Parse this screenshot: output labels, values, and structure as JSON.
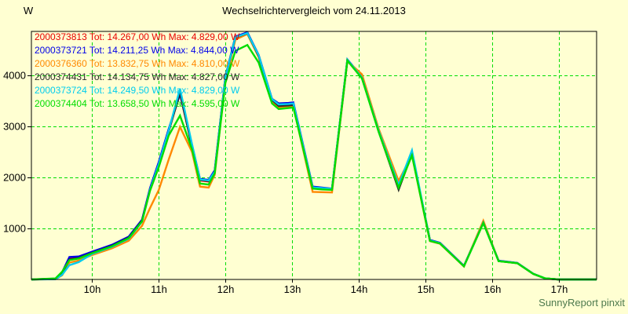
{
  "window": {
    "title": "Wechselrichtervergleich vom 24.11.2013"
  },
  "watermark": "SunnyReport pinxit",
  "colors": {
    "background": "#FFFFD2",
    "axis": "#000000",
    "grid": "#00DD00",
    "watermark": "#4E7A4E"
  },
  "chart_data": {
    "type": "line",
    "title": "Wechselrichtervergleich vom 24.11.2013",
    "ylabel": "W",
    "xlabel": "",
    "x_unit": "hour_of_day",
    "xlim": [
      9.09,
      17.57
    ],
    "ylim": [
      0,
      4861
    ],
    "grid": {
      "show": true,
      "color": "#00DD00",
      "style": "dashed"
    },
    "legend_position": "top-left-inside",
    "xticks": [
      {
        "value": 10,
        "label": "10h"
      },
      {
        "value": 11,
        "label": "11h"
      },
      {
        "value": 12,
        "label": "12h"
      },
      {
        "value": 13,
        "label": "13h"
      },
      {
        "value": 14,
        "label": "14h"
      },
      {
        "value": 15,
        "label": "15h"
      },
      {
        "value": 16,
        "label": "16h"
      },
      {
        "value": 17,
        "label": "17h"
      }
    ],
    "yticks": [
      {
        "value": 1000,
        "label": "1000"
      },
      {
        "value": 2000,
        "label": "2000"
      },
      {
        "value": 3000,
        "label": "3000"
      },
      {
        "value": 4000,
        "label": "4000"
      }
    ],
    "x": [
      9.09,
      9.45,
      9.55,
      9.66,
      9.8,
      10.0,
      10.3,
      10.55,
      10.75,
      10.87,
      11.0,
      11.15,
      11.32,
      11.5,
      11.62,
      11.75,
      11.84,
      12.0,
      12.15,
      12.33,
      12.5,
      12.7,
      12.8,
      12.95,
      13.02,
      13.31,
      13.45,
      13.6,
      13.83,
      14.05,
      14.3,
      14.6,
      14.8,
      15.0,
      15.07,
      15.22,
      15.58,
      15.87,
      16.1,
      16.38,
      16.62,
      16.8,
      17.0,
      17.57
    ],
    "series": [
      {
        "name": "2000373813",
        "tot_wh": "14.267,00",
        "max_w": "4.829,00",
        "label": "2000373813 Tot: 14.267,00 Wh Max: 4.829,00 W",
        "color": "#E80000",
        "values": [
          0,
          10,
          130,
          400,
          430,
          530,
          670,
          830,
          1160,
          1770,
          2280,
          2930,
          3640,
          2620,
          1940,
          1920,
          2120,
          3960,
          4750,
          4829,
          4390,
          3530,
          3420,
          3430,
          3440,
          1800,
          1785,
          1770,
          4300,
          3960,
          2910,
          1790,
          2470,
          1210,
          770,
          715,
          265,
          1115,
          365,
          322,
          112,
          20,
          0,
          0
        ]
      },
      {
        "name": "2000373721",
        "tot_wh": "14.211,25",
        "max_w": "4.844,00",
        "label": "2000373721 Tot: 14.211,25 Wh Max: 4.844,00 W",
        "color": "#0000E8",
        "values": [
          0,
          15,
          140,
          440,
          450,
          545,
          680,
          840,
          1170,
          1790,
          2300,
          2950,
          3630,
          2640,
          1970,
          1950,
          2140,
          3970,
          4760,
          4844,
          4400,
          3540,
          3450,
          3460,
          3470,
          1820,
          1800,
          1780,
          4310,
          3970,
          2920,
          1775,
          2480,
          1215,
          775,
          718,
          268,
          1118,
          368,
          324,
          113,
          20,
          0,
          0
        ]
      },
      {
        "name": "2000376360",
        "tot_wh": "13.832,75",
        "max_w": "4.810,00",
        "label": "2000376360 Tot: 13.832,75 Wh Max: 4.810,00 W",
        "color": "#FF8800",
        "values": [
          0,
          5,
          80,
          330,
          370,
          480,
          610,
          760,
          1050,
          1400,
          1750,
          2350,
          2990,
          2500,
          1820,
          1800,
          2050,
          3900,
          4700,
          4810,
          4360,
          3500,
          3370,
          3380,
          3390,
          1715,
          1710,
          1705,
          4280,
          4020,
          2950,
          1930,
          2440,
          1180,
          750,
          700,
          255,
          1150,
          360,
          318,
          108,
          15,
          0,
          0
        ]
      },
      {
        "name": "2000374431",
        "tot_wh": "14.134,75",
        "max_w": "4.827,00",
        "label": "2000374431 Tot: 14.134,75 Wh Max: 4.827,00 W",
        "color": "#2A2A2A",
        "values": [
          0,
          10,
          120,
          390,
          420,
          520,
          660,
          820,
          1150,
          1750,
          2250,
          2900,
          3660,
          2600,
          1950,
          1930,
          2100,
          3950,
          4740,
          4827,
          4380,
          3520,
          3400,
          3410,
          3420,
          1790,
          1775,
          1760,
          4290,
          3950,
          2900,
          1760,
          2460,
          1200,
          760,
          710,
          260,
          1110,
          360,
          320,
          110,
          20,
          0,
          0
        ]
      },
      {
        "name": "2000373724",
        "tot_wh": "14.249,50",
        "max_w": "4.829,00",
        "label": "2000373724 Tot: 14.249,50 Wh Max: 4.829,00 W",
        "color": "#00CCEE",
        "values": [
          0,
          5,
          90,
          280,
          340,
          500,
          640,
          800,
          1130,
          1760,
          2260,
          2920,
          3740,
          2650,
          1960,
          1940,
          2110,
          3955,
          4745,
          4829,
          4395,
          3535,
          3430,
          3440,
          3450,
          1805,
          1790,
          1775,
          4305,
          3955,
          2915,
          1850,
          2530,
          1220,
          765,
          712,
          262,
          1112,
          362,
          321,
          111,
          18,
          0,
          0
        ]
      },
      {
        "name": "2000374404",
        "tot_wh": "13.658,50",
        "max_w": "4.595,00",
        "label": "2000374404 Tot: 13.658,50 Wh Max: 4.595,00 W",
        "color": "#00DD00",
        "values": [
          0,
          20,
          150,
          380,
          410,
          515,
          650,
          810,
          1140,
          1740,
          2200,
          2820,
          3210,
          2550,
          1880,
          1860,
          2080,
          3850,
          4480,
          4595,
          4250,
          3450,
          3340,
          3360,
          3370,
          1780,
          1765,
          1755,
          4290,
          3940,
          2890,
          1800,
          2430,
          1190,
          755,
          705,
          258,
          1105,
          358,
          319,
          109,
          22,
          0,
          0
        ]
      }
    ]
  }
}
